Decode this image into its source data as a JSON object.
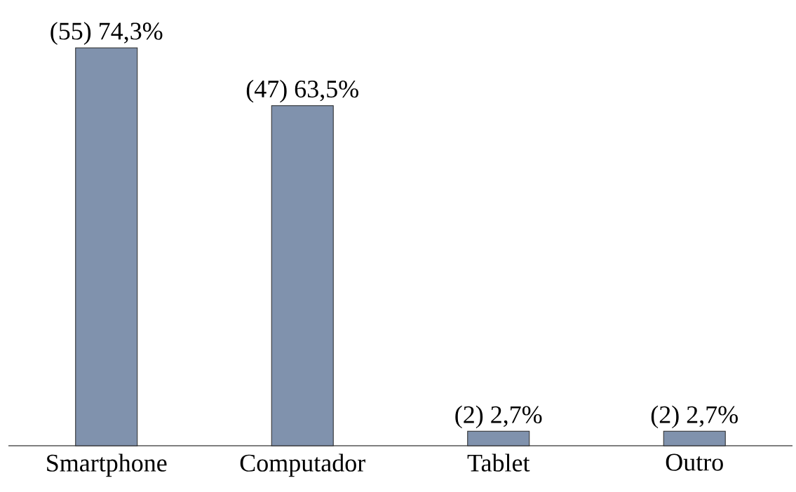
{
  "chart_data": {
    "type": "bar",
    "categories": [
      "Smartphone",
      "Computador",
      "Tablet",
      "Outro"
    ],
    "values": [
      74.3,
      63.5,
      2.7,
      2.7
    ],
    "value_labels": [
      "(55) 74,3%",
      "(47) 63,5%",
      "(2) 2,7%",
      "(2) 2,7%"
    ],
    "color": "#8092ad"
  }
}
